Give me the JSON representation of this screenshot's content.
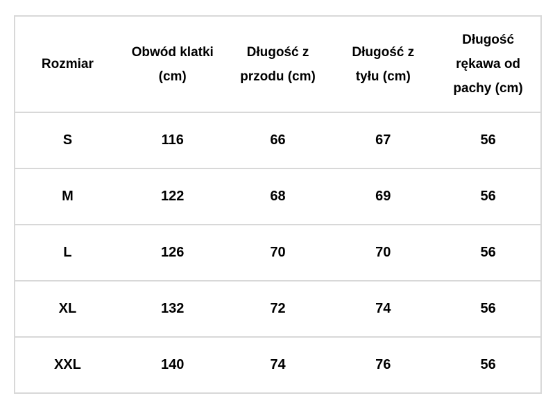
{
  "colors": {
    "table_border": "#d8d8d8",
    "text": "#000000",
    "background": "#ffffff"
  },
  "chart_data": {
    "type": "table",
    "title": "",
    "columns": [
      "Rozmiar",
      "Obwód klatki (cm)",
      "Długość z przodu (cm)",
      "Długość z tyłu (cm)",
      "Długość rękawa od pachy (cm)"
    ],
    "rows": [
      [
        "S",
        116,
        66,
        67,
        56
      ],
      [
        "M",
        122,
        68,
        69,
        56
      ],
      [
        "L",
        126,
        70,
        70,
        56
      ],
      [
        "XL",
        132,
        72,
        74,
        56
      ],
      [
        "XXL",
        140,
        74,
        76,
        56
      ]
    ]
  }
}
